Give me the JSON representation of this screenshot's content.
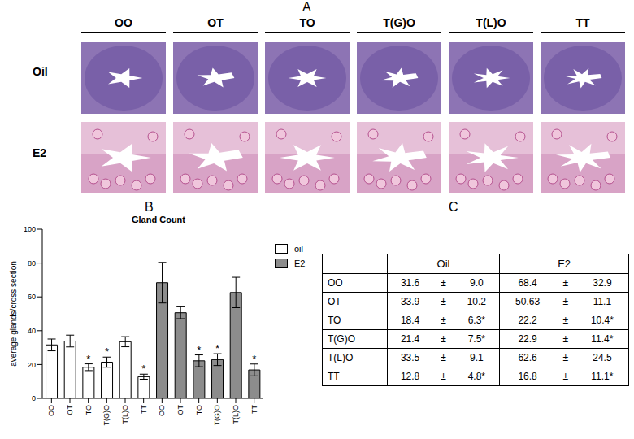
{
  "panel_labels": [
    "A",
    "B",
    "C"
  ],
  "images": {
    "columns": [
      "OO",
      "OT",
      "TO",
      "T(G)O",
      "T(L)O",
      "TT"
    ],
    "rows": [
      "Oil",
      "E2"
    ]
  },
  "chart_data": {
    "type": "bar",
    "title": "Gland Count",
    "ylabel": "average glands/cross section",
    "categories": [
      "OO",
      "OT",
      "TO",
      "T(G)O",
      "T(L)O",
      "TT",
      "OO",
      "OT",
      "TO",
      "T(G)O",
      "T(L)O",
      "TT"
    ],
    "ylim": [
      0,
      100
    ],
    "yticks": [
      0,
      20,
      40,
      60,
      80,
      100
    ],
    "annotation": "*",
    "legend": "right",
    "series": [
      {
        "name": "oil",
        "color": "#ffffff",
        "values": [
          31.6,
          33.9,
          18.4,
          21.4,
          33.5,
          12.8,
          null,
          null,
          null,
          null,
          null,
          null
        ],
        "errors": [
          3.5,
          3.5,
          2,
          3,
          3,
          1.5,
          null,
          null,
          null,
          null,
          null,
          null
        ],
        "significant": [
          false,
          false,
          true,
          true,
          false,
          true,
          false,
          false,
          false,
          false,
          false,
          false
        ]
      },
      {
        "name": "E2",
        "color": "#8c8c8c",
        "values": [
          null,
          null,
          null,
          null,
          null,
          null,
          68.4,
          50.63,
          22.2,
          22.9,
          62.6,
          16.8
        ],
        "errors": [
          null,
          null,
          null,
          null,
          null,
          null,
          12,
          3.5,
          3.5,
          3.5,
          9,
          3.5
        ],
        "significant": [
          false,
          false,
          false,
          false,
          false,
          false,
          false,
          false,
          true,
          true,
          false,
          true
        ]
      }
    ]
  },
  "table": {
    "header": [
      "Oil",
      "E2"
    ],
    "pm": "±",
    "rows": [
      {
        "label": "OO",
        "oil": [
          "31.6",
          "9.0"
        ],
        "E2": [
          "68.4",
          "32.9"
        ]
      },
      {
        "label": "OT",
        "oil": [
          "33.9",
          "10.2"
        ],
        "E2": [
          "50.63",
          "11.1"
        ]
      },
      {
        "label": "TO",
        "oil": [
          "18.4",
          "6.3*"
        ],
        "E2": [
          "22.2",
          "10.4*"
        ]
      },
      {
        "label": "T(G)O",
        "oil": [
          "21.4",
          "7.5*"
        ],
        "E2": [
          "22.9",
          "11.4*"
        ]
      },
      {
        "label": "T(L)O",
        "oil": [
          "33.5",
          "9.1"
        ],
        "E2": [
          "62.6",
          "24.5"
        ]
      },
      {
        "label": "TT",
        "oil": [
          "12.8",
          "4.8*"
        ],
        "E2": [
          "16.8",
          "11.1*"
        ]
      }
    ]
  }
}
